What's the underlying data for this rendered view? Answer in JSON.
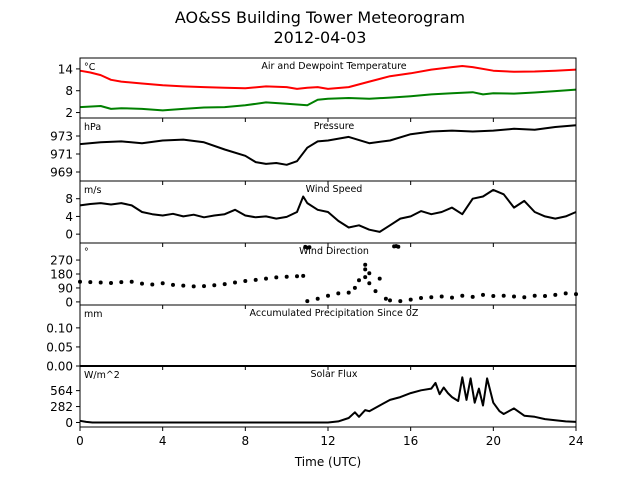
{
  "page": {
    "title": "AO&SS Building Tower Meteorogram",
    "subtitle": "2012-04-03"
  },
  "chart_data": [
    {
      "type": "line",
      "title": "Air and Dewpoint Temperature",
      "ylabel": "°C",
      "ylim": [
        0.5,
        17
      ],
      "yticks": [
        2,
        8,
        14
      ],
      "x_domain": [
        0,
        24
      ],
      "series": [
        {
          "color": "#ff0000",
          "x": [
            0,
            0.5,
            1,
            1.5,
            2,
            3,
            4,
            5,
            6,
            7,
            8,
            9,
            10,
            10.5,
            11,
            11.5,
            12,
            13,
            14,
            15,
            16,
            17,
            18,
            18.5,
            19,
            20,
            21,
            22,
            23,
            24
          ],
          "y": [
            13.5,
            13,
            12.3,
            11,
            10.5,
            10,
            9.5,
            9.2,
            9.0,
            8.8,
            8.7,
            9.2,
            9.0,
            8.5,
            8.8,
            9.0,
            8.5,
            9.0,
            10.5,
            12,
            12.8,
            13.8,
            14.5,
            14.8,
            14.5,
            13.5,
            13.2,
            13.3,
            13.5,
            13.8
          ]
        },
        {
          "color": "#008000",
          "x": [
            0,
            1,
            1.5,
            2,
            3,
            4,
            5,
            6,
            7,
            8,
            9,
            10,
            11,
            11.5,
            12,
            13,
            14,
            15,
            16,
            17,
            18,
            19,
            19.5,
            20,
            21,
            22,
            23,
            24
          ],
          "y": [
            3.5,
            3.8,
            3.0,
            3.2,
            3.0,
            2.6,
            3.0,
            3.4,
            3.5,
            4.0,
            4.8,
            4.4,
            4.0,
            5.5,
            5.8,
            6.0,
            5.8,
            6.1,
            6.5,
            7.0,
            7.3,
            7.6,
            7.0,
            7.3,
            7.2,
            7.5,
            7.9,
            8.3
          ]
        }
      ]
    },
    {
      "type": "line",
      "title": "Pressure",
      "ylabel": "hPa",
      "ylim": [
        968,
        975
      ],
      "yticks": [
        969,
        971,
        973
      ],
      "x_domain": [
        0,
        24
      ],
      "series": [
        {
          "color": "#000000",
          "x": [
            0,
            1,
            2,
            3,
            4,
            5,
            6,
            7,
            8,
            8.5,
            9,
            9.5,
            10,
            10.5,
            11,
            11.5,
            12,
            13,
            14,
            15,
            16,
            17,
            18,
            19,
            20,
            21,
            22,
            23,
            24
          ],
          "y": [
            972.1,
            972.3,
            972.4,
            972.2,
            972.5,
            972.6,
            972.3,
            971.5,
            970.8,
            970.1,
            969.9,
            970.0,
            969.8,
            970.2,
            971.7,
            972.4,
            972.5,
            972.9,
            972.2,
            972.5,
            973.2,
            973.5,
            973.6,
            973.5,
            973.6,
            973.8,
            973.7,
            974.0,
            974.2
          ]
        }
      ]
    },
    {
      "type": "line",
      "title": "Wind Speed",
      "ylabel": "m/s",
      "ylim": [
        -2,
        12
      ],
      "yticks": [
        0,
        4,
        8
      ],
      "x_domain": [
        0,
        24
      ],
      "series": [
        {
          "color": "#000000",
          "x": [
            0,
            0.5,
            1,
            1.5,
            2,
            2.5,
            3,
            3.5,
            4,
            4.5,
            5,
            5.5,
            6,
            6.5,
            7,
            7.5,
            8,
            8.5,
            9,
            9.5,
            10,
            10.5,
            10.8,
            11,
            11.5,
            12,
            12.5,
            13,
            13.5,
            14,
            14.5,
            15,
            15.5,
            16,
            16.5,
            17,
            17.5,
            18,
            18.5,
            19,
            19.5,
            20,
            20.5,
            21,
            21.5,
            22,
            22.5,
            23,
            23.5,
            24
          ],
          "y": [
            6.5,
            6.8,
            7.0,
            6.7,
            7.0,
            6.5,
            5.0,
            4.5,
            4.2,
            4.6,
            4.0,
            4.4,
            3.8,
            4.2,
            4.5,
            5.5,
            4.2,
            3.8,
            4.0,
            3.5,
            3.9,
            5.0,
            8.5,
            7.0,
            5.5,
            5.0,
            3.0,
            1.5,
            2.0,
            1.0,
            0.5,
            2.0,
            3.5,
            4.0,
            5.2,
            4.5,
            5.0,
            6.0,
            4.5,
            8.0,
            8.5,
            10.0,
            9.0,
            6.0,
            7.5,
            5.0,
            4.0,
            3.5,
            4.0,
            5.0
          ]
        }
      ]
    },
    {
      "type": "scatter",
      "title": "Wind Direction",
      "ylabel": "°",
      "ylim": [
        -20,
        380
      ],
      "yticks": [
        0,
        90,
        180,
        270
      ],
      "x_domain": [
        0,
        24
      ],
      "series": [
        {
          "color": "#000000",
          "x": [
            0,
            0.5,
            1,
            1.5,
            2,
            2.5,
            3,
            3.5,
            4,
            4.5,
            5,
            5.5,
            6,
            6.5,
            7,
            7.5,
            8,
            8.5,
            9,
            9.5,
            10,
            10.5,
            10.8,
            11,
            11.5,
            12,
            12.5,
            13,
            13.3,
            13.5,
            13.8,
            14,
            14.3,
            14.5,
            14.8,
            15,
            15.5,
            16,
            16.5,
            17,
            17.5,
            18,
            18.5,
            19,
            19.5,
            20,
            20.5,
            21,
            21.5,
            22,
            22.5,
            23,
            23.5,
            24
          ],
          "y": [
            130,
            128,
            125,
            122,
            128,
            130,
            118,
            112,
            120,
            110,
            105,
            100,
            102,
            108,
            115,
            125,
            135,
            142,
            150,
            158,
            162,
            165,
            168,
            5,
            20,
            40,
            55,
            60,
            90,
            140,
            160,
            120,
            70,
            150,
            20,
            10,
            5,
            15,
            25,
            30,
            35,
            28,
            40,
            32,
            45,
            38,
            40,
            35,
            30,
            40,
            38,
            45,
            55,
            50
          ]
        },
        {
          "color": "#000000",
          "x": [
            10.9,
            11.0,
            11.1,
            15.2,
            15.3,
            15.4,
            13.8,
            13.8,
            14.0
          ],
          "y": [
            355,
            350,
            352,
            358,
            360,
            356,
            210,
            240,
            185
          ]
        }
      ]
    },
    {
      "type": "line",
      "title": "Accumulated Precipitation Since 0Z",
      "ylabel": "mm",
      "ylim": [
        0,
        0.16
      ],
      "yticks": [
        0.0,
        0.05,
        0.1
      ],
      "ytick_labels": [
        "0.00",
        "0.05",
        "0.10"
      ],
      "x_domain": [
        0,
        24
      ],
      "series": [
        {
          "color": "#000000",
          "x": [
            0,
            24
          ],
          "y": [
            0,
            0
          ]
        }
      ]
    },
    {
      "type": "line",
      "title": "Solar Flux",
      "ylabel": "W/m^2",
      "ylim": [
        -80,
        1000
      ],
      "yticks": [
        0,
        282,
        564
      ],
      "x_domain": [
        0,
        24
      ],
      "xticks": [
        0,
        4,
        8,
        12,
        16,
        20,
        24
      ],
      "xlabel": "Time (UTC)",
      "series": [
        {
          "color": "#000000",
          "x": [
            0,
            0.3,
            0.6,
            1,
            2,
            4,
            6,
            8,
            10,
            11,
            12,
            12.5,
            13,
            13.3,
            13.5,
            13.8,
            14,
            14.5,
            15,
            15.5,
            16,
            16.5,
            17,
            17.2,
            17.4,
            17.6,
            17.8,
            18,
            18.3,
            18.5,
            18.7,
            18.9,
            19.1,
            19.3,
            19.5,
            19.7,
            20,
            20.3,
            20.5,
            21,
            21.5,
            22,
            22.5,
            23,
            23.5,
            24
          ],
          "y": [
            30,
            10,
            0,
            0,
            0,
            0,
            0,
            0,
            0,
            0,
            0,
            20,
            80,
            180,
            100,
            220,
            200,
            300,
            400,
            450,
            520,
            570,
            600,
            700,
            500,
            620,
            520,
            450,
            380,
            800,
            400,
            780,
            350,
            600,
            300,
            780,
            350,
            200,
            150,
            250,
            120,
            100,
            60,
            40,
            20,
            10
          ]
        }
      ]
    }
  ]
}
